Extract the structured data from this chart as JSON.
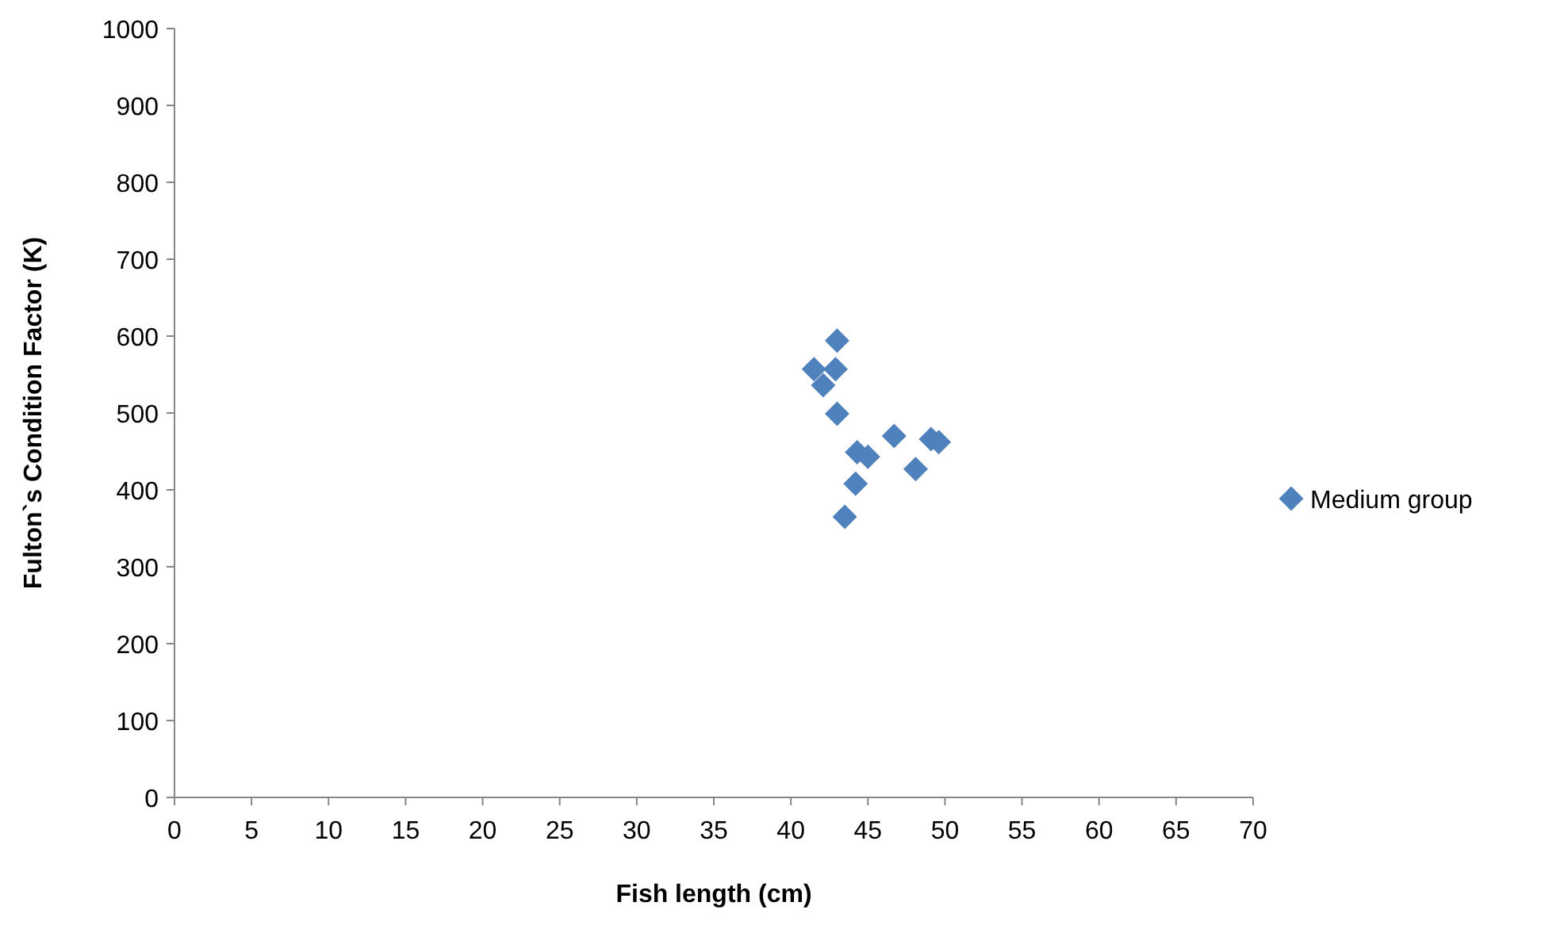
{
  "chart_data": {
    "type": "scatter",
    "xlabel": "Fish length (cm)",
    "ylabel": "Fulton`s Condition Factor (K)",
    "xlim": [
      0,
      70
    ],
    "xticks": [
      0,
      5,
      10,
      15,
      20,
      25,
      30,
      35,
      40,
      45,
      50,
      55,
      60,
      65,
      70
    ],
    "ylim": [
      0,
      1000
    ],
    "yticks": [
      0,
      100,
      200,
      300,
      400,
      500,
      600,
      700,
      800,
      900,
      1000
    ],
    "marker": "diamond",
    "legend": "right",
    "series": [
      {
        "name": "Medium group",
        "color": "#4f81bd",
        "x": [
          43.0,
          41.5,
          42.9,
          42.1,
          43.0,
          44.3,
          45.0,
          44.2,
          43.5,
          46.7,
          48.1,
          49.1,
          49.6
        ],
        "values": [
          594,
          557,
          557,
          536,
          499,
          449,
          443,
          408,
          365,
          470,
          427,
          466,
          462
        ]
      }
    ]
  }
}
